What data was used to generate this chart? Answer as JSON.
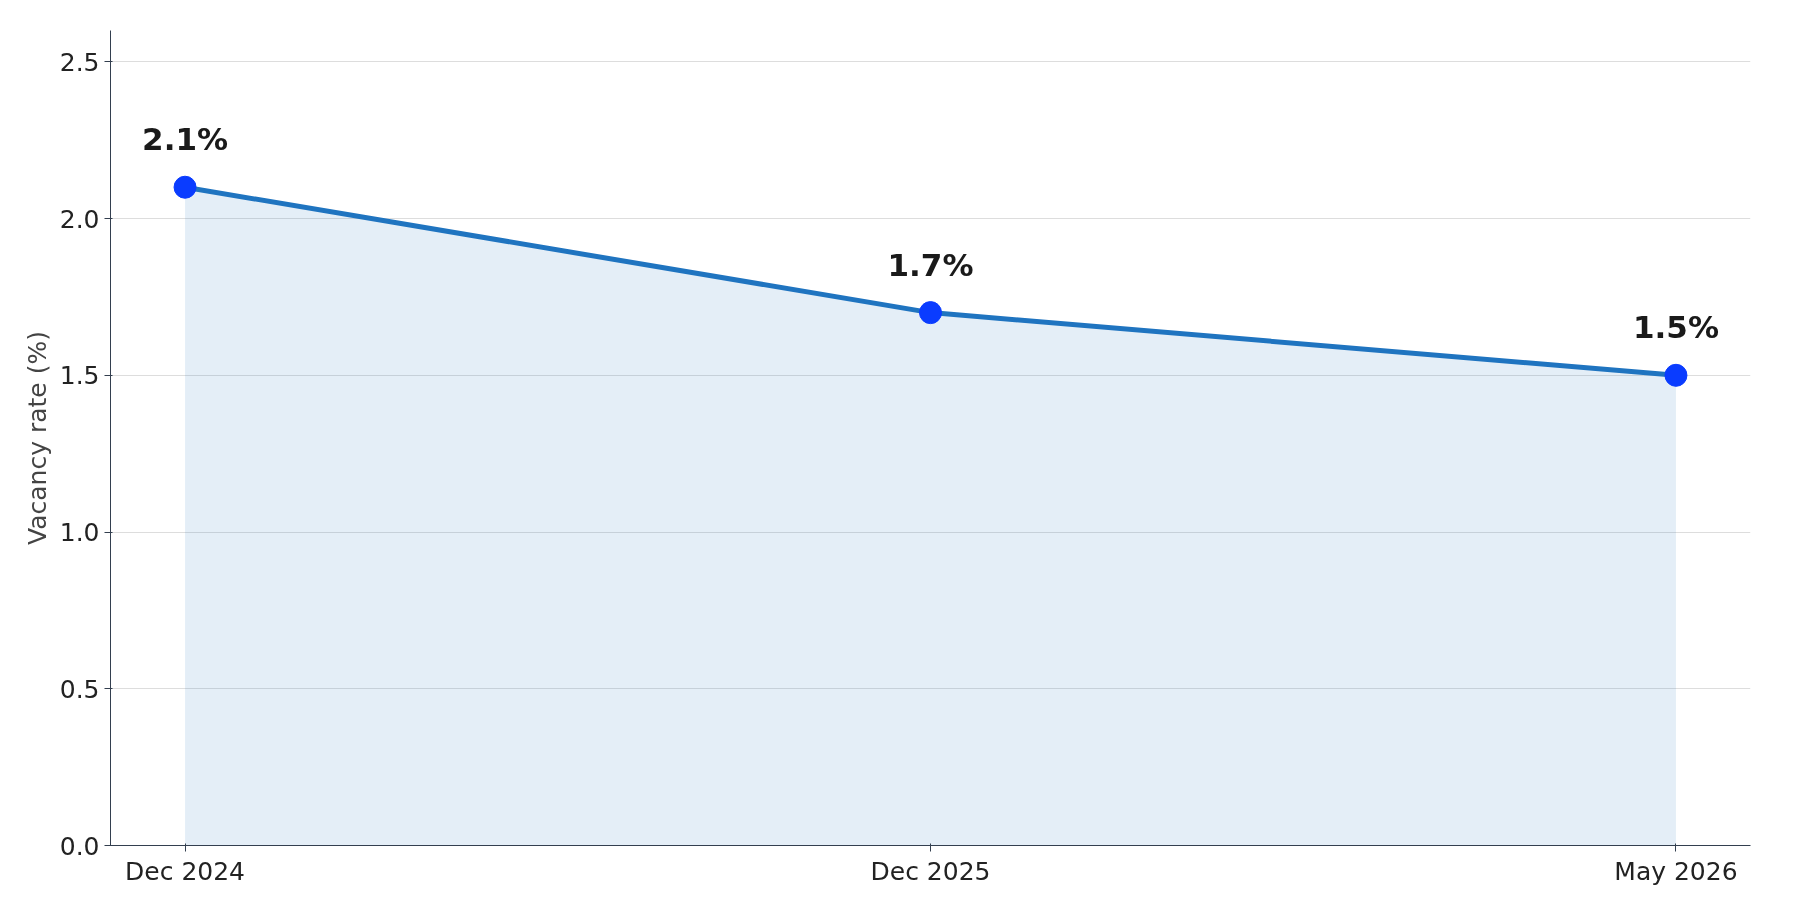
{
  "chart_data": {
    "type": "area",
    "ylabel": "Vacancy rate (%)",
    "categories": [
      "Dec 2024",
      "Dec 2025",
      "May 2026"
    ],
    "series": [
      {
        "color": "#1f74c0",
        "values": [
          2.1,
          1.7,
          1.5
        ],
        "value_labels": [
          "2.1%",
          "1.7%",
          "1.5%"
        ]
      }
    ],
    "ylim": [
      0,
      2.6
    ],
    "yticks": [
      {
        "value": 0,
        "label": "0.0"
      },
      0.5,
      {
        "value": 1,
        "label": "1.0"
      },
      1.5,
      {
        "value": 2,
        "label": "2.0"
      },
      2.5
    ],
    "grid": "y",
    "marker": "circle",
    "line_style": "solid"
  }
}
